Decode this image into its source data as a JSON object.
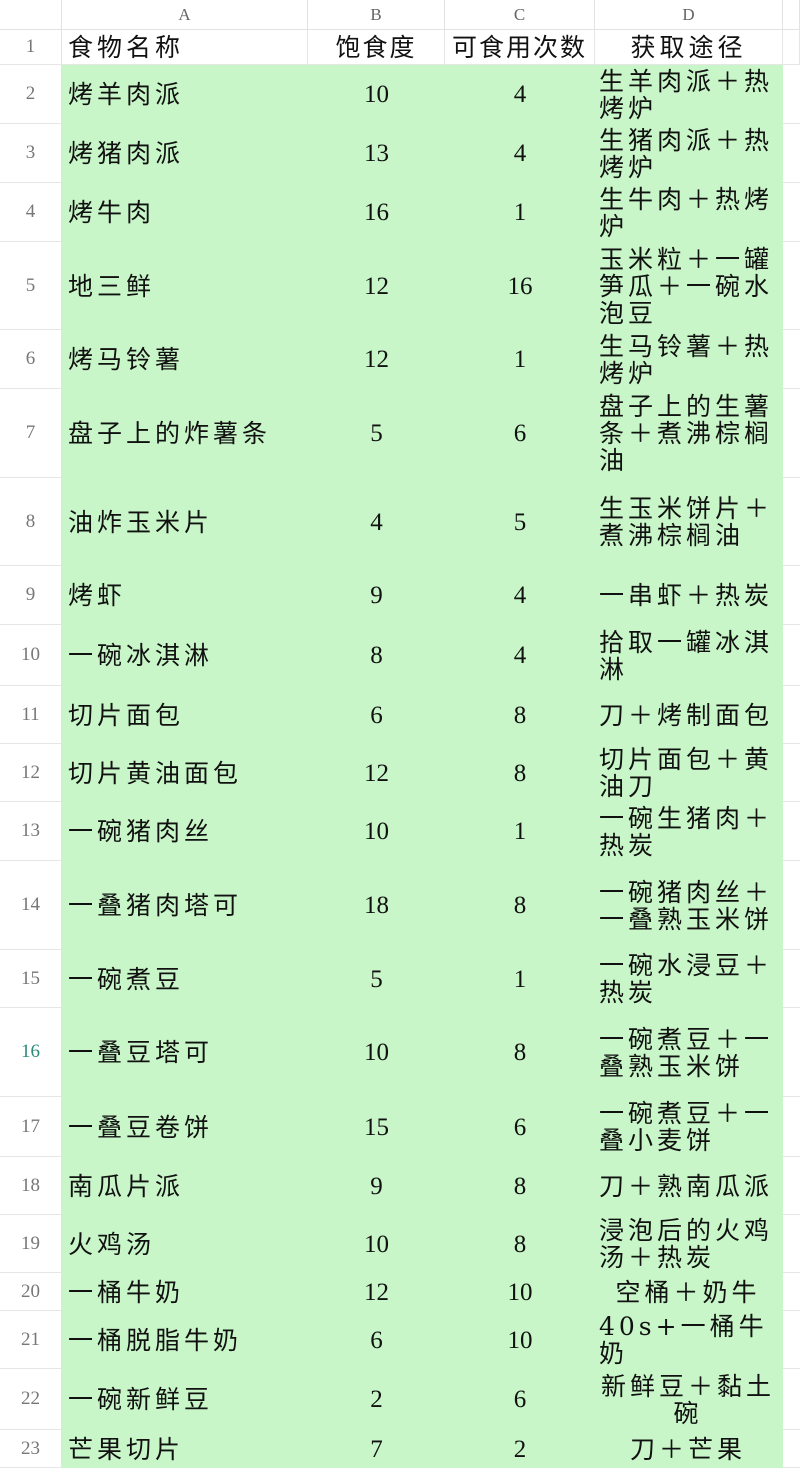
{
  "columns": [
    "A",
    "B",
    "C",
    "D"
  ],
  "header": {
    "row": "1",
    "name": "食物名称",
    "satiety": "饱食度",
    "uses": "可食用次数",
    "source": "获取途径"
  },
  "selected_row": "16",
  "highlight_color": "#c8f6c8",
  "rows": [
    {
      "row": "2",
      "name": "烤羊肉派",
      "satiety": "10",
      "uses": "4",
      "source": "生羊肉派＋热烤炉"
    },
    {
      "row": "3",
      "name": "烤猪肉派",
      "satiety": "13",
      "uses": "4",
      "source": "生猪肉派＋热烤炉"
    },
    {
      "row": "4",
      "name": "烤牛肉",
      "satiety": "16",
      "uses": "1",
      "source": "生牛肉＋热烤炉"
    },
    {
      "row": "5",
      "name": "地三鲜",
      "satiety": "12",
      "uses": "16",
      "source": "玉米粒＋一罐笋瓜＋一碗水泡豆"
    },
    {
      "row": "6",
      "name": "烤马铃薯",
      "satiety": "12",
      "uses": "1",
      "source": "生马铃薯＋热烤炉"
    },
    {
      "row": "7",
      "name": "盘子上的炸薯条",
      "satiety": "5",
      "uses": "6",
      "source": "盘子上的生薯条＋煮沸棕榈油"
    },
    {
      "row": "8",
      "name": "油炸玉米片",
      "satiety": "4",
      "uses": "5",
      "source": "生玉米饼片＋煮沸棕榈油"
    },
    {
      "row": "9",
      "name": "烤虾",
      "satiety": "9",
      "uses": "4",
      "source": "一串虾＋热炭"
    },
    {
      "row": "10",
      "name": "一碗冰淇淋",
      "satiety": "8",
      "uses": "4",
      "source": "拾取一罐冰淇淋"
    },
    {
      "row": "11",
      "name": "切片面包",
      "satiety": "6",
      "uses": "8",
      "source": "刀＋烤制面包"
    },
    {
      "row": "12",
      "name": "切片黄油面包",
      "satiety": "12",
      "uses": "8",
      "source": "切片面包＋黄油刀"
    },
    {
      "row": "13",
      "name": "一碗猪肉丝",
      "satiety": "10",
      "uses": "1",
      "source": "一碗生猪肉＋热炭"
    },
    {
      "row": "14",
      "name": "一叠猪肉塔可",
      "satiety": "18",
      "uses": "8",
      "source": "一碗猪肉丝＋一叠熟玉米饼"
    },
    {
      "row": "15",
      "name": "一碗煮豆",
      "satiety": "5",
      "uses": "1",
      "source": "一碗水浸豆＋热炭"
    },
    {
      "row": "16",
      "name": "一叠豆塔可",
      "satiety": "10",
      "uses": "8",
      "source": "一碗煮豆＋一叠熟玉米饼"
    },
    {
      "row": "17",
      "name": "一叠豆卷饼",
      "satiety": "15",
      "uses": "6",
      "source": "一碗煮豆＋一叠小麦饼"
    },
    {
      "row": "18",
      "name": "南瓜片派",
      "satiety": "9",
      "uses": "8",
      "source": "刀＋熟南瓜派"
    },
    {
      "row": "19",
      "name": "火鸡汤",
      "satiety": "10",
      "uses": "8",
      "source": "浸泡后的火鸡汤＋热炭"
    },
    {
      "row": "20",
      "name": "一桶牛奶",
      "satiety": "12",
      "uses": "10",
      "source": "空桶＋奶牛"
    },
    {
      "row": "21",
      "name": "一桶脱脂牛奶",
      "satiety": "6",
      "uses": "10",
      "source": "40s+一桶牛奶"
    },
    {
      "row": "22",
      "name": "一碗新鲜豆",
      "satiety": "2",
      "uses": "6",
      "source": "新鲜豆＋黏土碗"
    },
    {
      "row": "23",
      "name": "芒果切片",
      "satiety": "7",
      "uses": "2",
      "source": "刀＋芒果"
    }
  ]
}
